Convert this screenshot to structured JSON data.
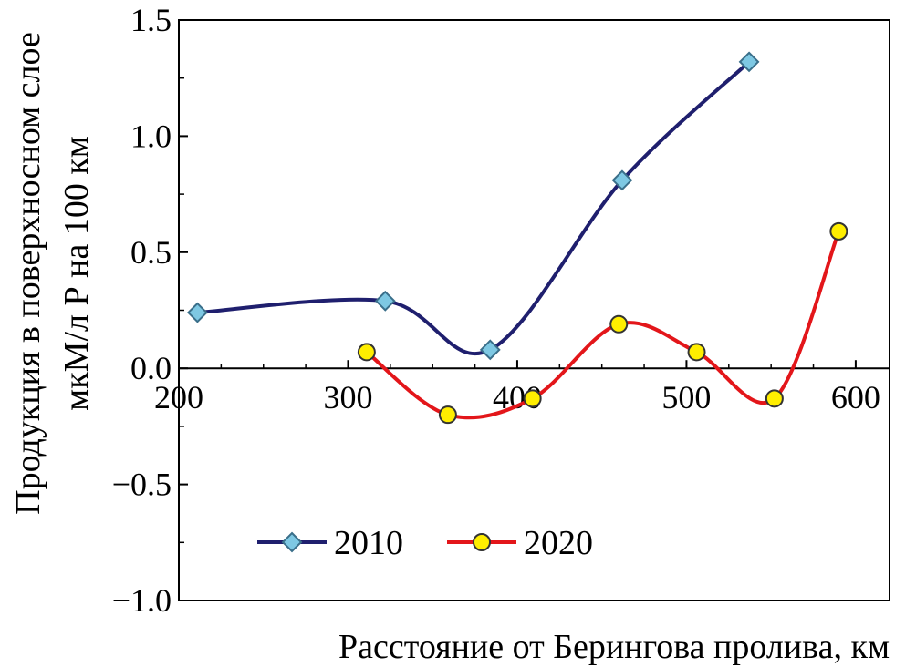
{
  "chart_data": {
    "type": "line",
    "title": "",
    "xlabel": "Расстояние от Берингова пролива, км",
    "ylabel_line1": "Продукция в поверхносном слое",
    "ylabel_line2": "мкМ/л Р на 100 км",
    "xlim": [
      200,
      620
    ],
    "ylim": [
      -1.0,
      1.5
    ],
    "x_ticks": [
      200,
      300,
      400,
      500,
      600
    ],
    "x_tick_labels": [
      "200",
      "300",
      "400",
      "500",
      "600"
    ],
    "y_ticks": [
      1.5,
      1.0,
      0.5,
      0.0,
      -0.5,
      -1.0
    ],
    "y_tick_labels": [
      "1.5",
      "1.0",
      "0.5",
      "0.0",
      "−0.5",
      "−1.0"
    ],
    "grid": false,
    "legend_position": "lower-left",
    "series": [
      {
        "name": "2010",
        "color": "#1f1f6e",
        "marker": "diamond",
        "marker_color": "#7ec8e3",
        "x": [
          211,
          322,
          384,
          462,
          537
        ],
        "y": [
          0.24,
          0.29,
          0.08,
          0.81,
          1.32
        ]
      },
      {
        "name": "2020",
        "color": "#e3161a",
        "marker": "circle",
        "marker_color": "#ffee00",
        "x": [
          311,
          359,
          409,
          460,
          506,
          552,
          590
        ],
        "y": [
          0.07,
          -0.2,
          -0.13,
          0.19,
          0.07,
          -0.13,
          0.59
        ]
      }
    ]
  }
}
